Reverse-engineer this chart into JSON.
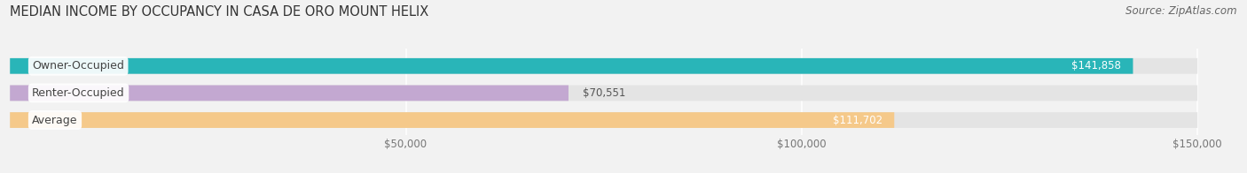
{
  "title": "MEDIAN INCOME BY OCCUPANCY IN CASA DE ORO MOUNT HELIX",
  "source": "Source: ZipAtlas.com",
  "categories": [
    "Owner-Occupied",
    "Renter-Occupied",
    "Average"
  ],
  "values": [
    141858,
    70551,
    111702
  ],
  "bar_colors": [
    "#29b5b8",
    "#c3a8d1",
    "#f5c98a"
  ],
  "value_labels": [
    "$141,858",
    "$70,551",
    "$111,702"
  ],
  "xlim_max": 155000,
  "data_max": 150000,
  "xticks": [
    50000,
    100000,
    150000
  ],
  "xtick_labels": [
    "$50,000",
    "$100,000",
    "$150,000"
  ],
  "background_color": "#f2f2f2",
  "bar_bg_color": "#e4e4e4",
  "title_fontsize": 10.5,
  "source_fontsize": 8.5,
  "label_fontsize": 9,
  "value_fontsize": 8.5
}
